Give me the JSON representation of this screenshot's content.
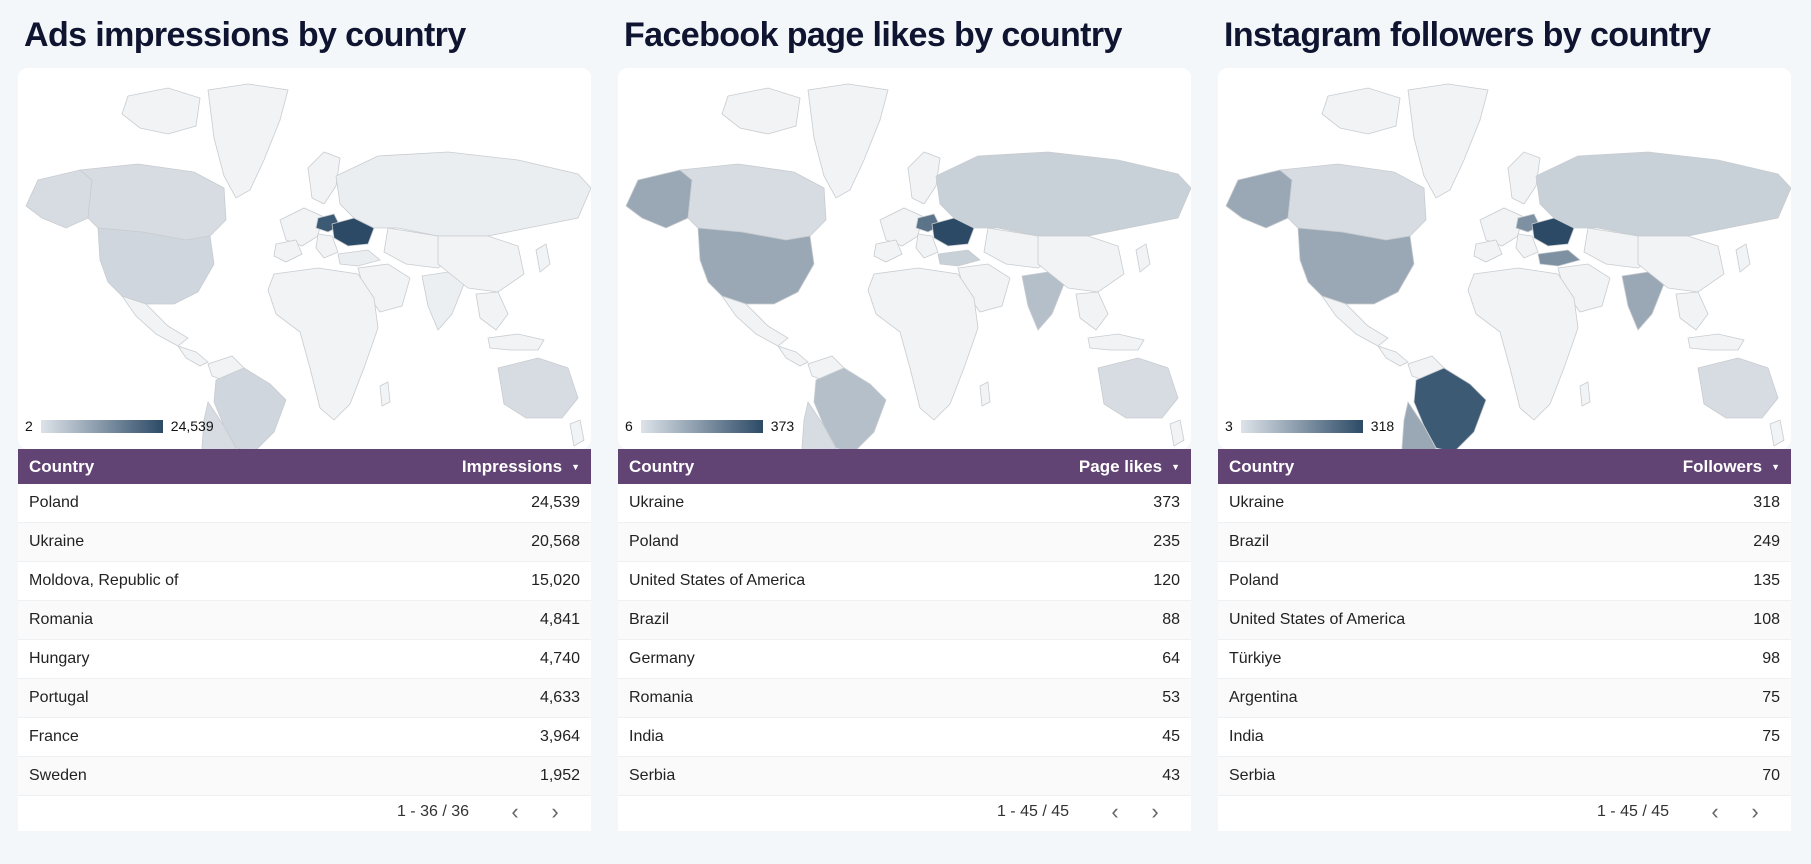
{
  "panels": [
    {
      "id": "ads",
      "title": "Ads impressions by country",
      "legend": {
        "min": "2",
        "max": "24,539"
      },
      "table": {
        "col_country": "Country",
        "col_metric": "Impressions",
        "rows": [
          {
            "country": "Poland",
            "value": "24,539"
          },
          {
            "country": "Ukraine",
            "value": "20,568"
          },
          {
            "country": "Moldova, Republic of",
            "value": "15,020"
          },
          {
            "country": "Romania",
            "value": "4,841"
          },
          {
            "country": "Hungary",
            "value": "4,740"
          },
          {
            "country": "Portugal",
            "value": "4,633"
          },
          {
            "country": "France",
            "value": "3,964"
          },
          {
            "country": "Sweden",
            "value": "1,952"
          }
        ],
        "pagination": "1 - 36 / 36"
      }
    },
    {
      "id": "facebook",
      "title": "Facebook page likes by country",
      "legend": {
        "min": "6",
        "max": "373"
      },
      "table": {
        "col_country": "Country",
        "col_metric": "Page likes",
        "rows": [
          {
            "country": "Ukraine",
            "value": "373"
          },
          {
            "country": "Poland",
            "value": "235"
          },
          {
            "country": "United States of America",
            "value": "120"
          },
          {
            "country": "Brazil",
            "value": "88"
          },
          {
            "country": "Germany",
            "value": "64"
          },
          {
            "country": "Romania",
            "value": "53"
          },
          {
            "country": "India",
            "value": "45"
          },
          {
            "country": "Serbia",
            "value": "43"
          }
        ],
        "pagination": "1 - 45 / 45"
      }
    },
    {
      "id": "instagram",
      "title": "Instagram followers by country",
      "legend": {
        "min": "3",
        "max": "318"
      },
      "table": {
        "col_country": "Country",
        "col_metric": "Followers",
        "rows": [
          {
            "country": "Ukraine",
            "value": "318"
          },
          {
            "country": "Brazil",
            "value": "249"
          },
          {
            "country": "Poland",
            "value": "135"
          },
          {
            "country": "United States of America",
            "value": "108"
          },
          {
            "country": "Türkiye",
            "value": "98"
          },
          {
            "country": "Argentina",
            "value": "75"
          },
          {
            "country": "India",
            "value": "75"
          },
          {
            "country": "Serbia",
            "value": "70"
          }
        ],
        "pagination": "1 - 45 / 45"
      }
    }
  ],
  "icons": {
    "sort": "sort-desc-icon",
    "prev": "chevron-left-icon",
    "next": "chevron-right-icon"
  },
  "colors": {
    "header_bg": "#614474",
    "map_min": "#dde3e9",
    "map_max": "#2c4a66",
    "title": "#0f1530",
    "page_bg": "#f4f7f9"
  },
  "map_shading": {
    "ads": {
      "usa": "#cfd6dd",
      "canada": "#d6dce2",
      "alaska": "#d6dce2",
      "brazil": "#cfd6dd",
      "russia": "#ebeef1",
      "ukraine": "#2c4a66",
      "poland": "#3d5a75",
      "india": "#eceff2",
      "australia": "#d6dce2",
      "argentina": "#d6dce2",
      "turkey": "#ebeef1"
    },
    "facebook": {
      "usa": "#9aa8b5",
      "canada": "#d6dce2",
      "alaska": "#9aa8b5",
      "brazil": "#b4bfc9",
      "russia": "#c9d1d8",
      "ukraine": "#2c4a66",
      "poland": "#5c7489",
      "india": "#b4bfc9",
      "australia": "#d6dce2",
      "argentina": "#d6dce2",
      "turkey": "#c9d1d8"
    },
    "instagram": {
      "usa": "#9aa8b5",
      "canada": "#d6dce2",
      "alaska": "#9aa8b5",
      "brazil": "#3d5a75",
      "russia": "#c9d1d8",
      "ukraine": "#2c4a66",
      "poland": "#7d91a3",
      "india": "#9aa8b5",
      "australia": "#d6dce2",
      "argentina": "#9aa8b5",
      "turkey": "#7d91a3"
    }
  }
}
